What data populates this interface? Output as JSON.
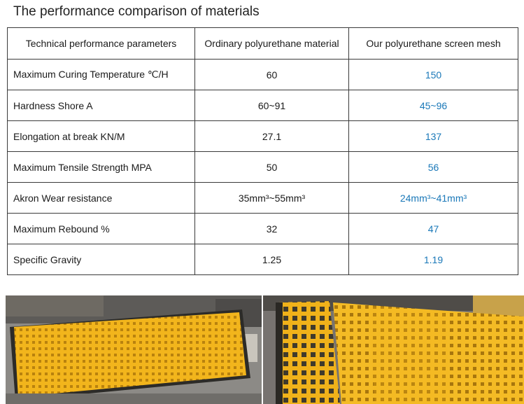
{
  "title": "The performance comparison of materials",
  "table": {
    "headers": [
      "Technical performance parameters",
      "Ordinary polyurethane material",
      "Our polyurethane screen mesh"
    ],
    "rows": [
      {
        "parameter": "Maximum Curing Temperature  ℃/H",
        "ordinary": "60",
        "ours": "150"
      },
      {
        "parameter": "Hardness Shore A",
        "ordinary": "60~91",
        "ours": "45~96"
      },
      {
        "parameter": "Elongation at break KN/M",
        "ordinary": "27.1",
        "ours": "137"
      },
      {
        "parameter": "Maximum Tensile Strength MPA",
        "ordinary": "50",
        "ours": "56"
      },
      {
        "parameter": "Akron Wear resistance",
        "ordinary": "35mm³~55mm³",
        "ours": "24mm³~41mm³"
      },
      {
        "parameter": "Maximum Rebound %",
        "ordinary": "32",
        "ours": "47"
      },
      {
        "parameter": "Specific Gravity",
        "ordinary": "1.25",
        "ours": "1.19"
      }
    ]
  },
  "colors": {
    "highlight_text": "#1a78b8",
    "mesh_yellow": "#f2b51c",
    "border": "#3a3a3a"
  }
}
